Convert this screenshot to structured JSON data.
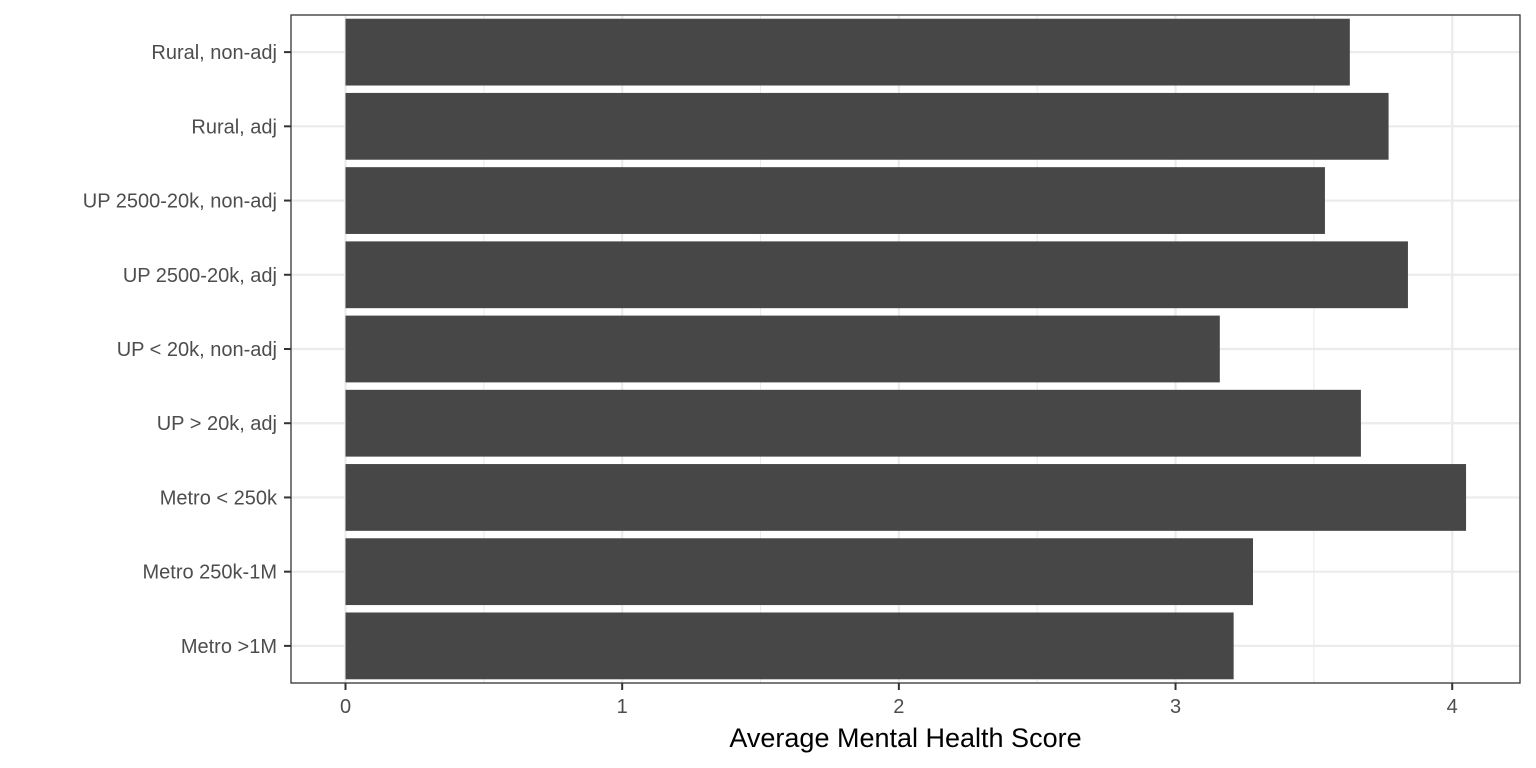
{
  "chart_data": {
    "type": "bar",
    "orientation": "horizontal",
    "title": "",
    "xlabel": "Average Mental Health Score",
    "ylabel": "",
    "categories": [
      "Rural, non-adj",
      "Rural, adj",
      "UP 2500-20k, non-adj",
      "UP 2500-20k, adj",
      "UP < 20k, non-adj",
      "UP > 20k, adj",
      "Metro < 250k",
      "Metro 250k-1M",
      "Metro >1M"
    ],
    "values": [
      3.63,
      3.77,
      3.54,
      3.84,
      3.16,
      3.67,
      4.05,
      3.28,
      3.21
    ],
    "xlim": [
      -0.197,
      4.245
    ],
    "xticks": [
      0,
      1,
      2,
      3,
      4
    ],
    "xtick_labels": [
      "0",
      "1",
      "2",
      "3",
      "4"
    ],
    "grid": true,
    "legend": "none",
    "colors": {
      "bar": "#474747",
      "grid": "#ebebeb",
      "panel_border": "#333333",
      "tick_text": "#4d4d4d",
      "axis_title": "#000000"
    }
  }
}
